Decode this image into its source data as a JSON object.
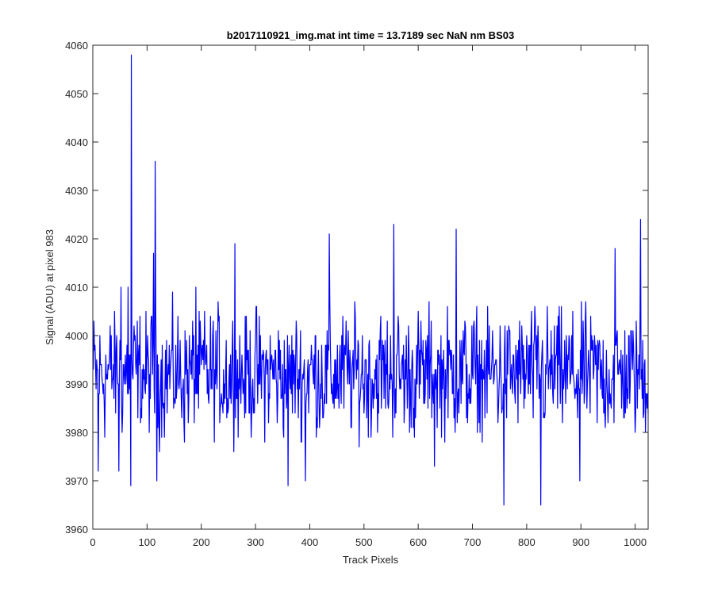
{
  "chart_data": {
    "type": "line",
    "title": "b2017110921_img.mat int time = 13.7189 sec  NaN nm BS03",
    "xlabel": "Track Pixels",
    "ylabel": "Signal (ADU) at pixel 983",
    "xlim": [
      0,
      1024
    ],
    "ylim": [
      3960,
      4060
    ],
    "xticks": [
      0,
      100,
      200,
      300,
      400,
      500,
      600,
      700,
      800,
      900,
      1000
    ],
    "yticks": [
      3960,
      3970,
      3980,
      3990,
      4000,
      4010,
      4020,
      4030,
      4040,
      4050,
      4060
    ],
    "xtick_labels": [
      "0",
      "100",
      "200",
      "300",
      "400",
      "500",
      "600",
      "700",
      "800",
      "900",
      "1000"
    ],
    "ytick_labels": [
      "3960",
      "3970",
      "3980",
      "3990",
      "4000",
      "4010",
      "4020",
      "4030",
      "4040",
      "4050",
      "4060"
    ],
    "grid": false,
    "series": [
      {
        "color": "#0000ff",
        "baseline": 3992,
        "noise_amplitude": 9,
        "n_points": 1024,
        "notable_points": [
          {
            "x": 10,
            "y": 3972
          },
          {
            "x": 48,
            "y": 3972
          },
          {
            "x": 52,
            "y": 4010
          },
          {
            "x": 65,
            "y": 4010
          },
          {
            "x": 70,
            "y": 3969
          },
          {
            "x": 71,
            "y": 4058
          },
          {
            "x": 112,
            "y": 4017
          },
          {
            "x": 115,
            "y": 4036
          },
          {
            "x": 118,
            "y": 3970
          },
          {
            "x": 190,
            "y": 4010
          },
          {
            "x": 262,
            "y": 4019
          },
          {
            "x": 360,
            "y": 3969
          },
          {
            "x": 392,
            "y": 3970
          },
          {
            "x": 436,
            "y": 4021
          },
          {
            "x": 555,
            "y": 4023
          },
          {
            "x": 630,
            "y": 3973
          },
          {
            "x": 670,
            "y": 4022
          },
          {
            "x": 758,
            "y": 3965
          },
          {
            "x": 826,
            "y": 3965
          },
          {
            "x": 898,
            "y": 3970
          },
          {
            "x": 963,
            "y": 4018
          },
          {
            "x": 1010,
            "y": 4024
          }
        ]
      }
    ]
  }
}
